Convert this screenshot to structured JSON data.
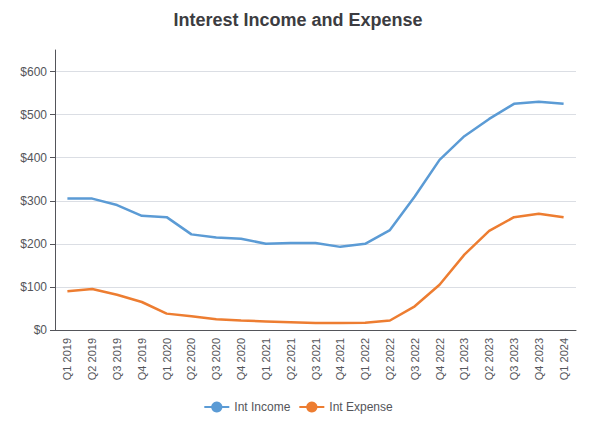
{
  "chart_data": {
    "type": "line",
    "title": "Interest Income and Expense",
    "categories": [
      "Q1 2019",
      "Q2 2019",
      "Q3 2019",
      "Q4 2019",
      "Q1 2020",
      "Q2 2020",
      "Q3 2020",
      "Q4 2020",
      "Q1 2021",
      "Q2 2021",
      "Q3 2021",
      "Q4 2021",
      "Q1 2022",
      "Q2 2022",
      "Q3 2022",
      "Q4 2022",
      "Q1 2023",
      "Q2 2023",
      "Q3 2023",
      "Q4 2023",
      "Q1 2024"
    ],
    "series": [
      {
        "name": "Int Income",
        "color": "#5B9BD5",
        "values": [
          305,
          305,
          290,
          265,
          262,
          222,
          215,
          212,
          200,
          202,
          202,
          193,
          200,
          232,
          310,
          395,
          450,
          490,
          525,
          530,
          525
        ]
      },
      {
        "name": "Int Expense",
        "color": "#ED7D31",
        "values": [
          90,
          95,
          82,
          65,
          38,
          32,
          25,
          22,
          20,
          18,
          16,
          16,
          17,
          22,
          55,
          105,
          175,
          230,
          262,
          270,
          262
        ]
      }
    ],
    "ylim": [
      0,
      650
    ],
    "yticks": [
      {
        "value": 0,
        "label": "$0"
      },
      {
        "value": 100,
        "label": "$100"
      },
      {
        "value": 200,
        "label": "$200"
      },
      {
        "value": 300,
        "label": "$300"
      },
      {
        "value": 400,
        "label": "$400"
      },
      {
        "value": 500,
        "label": "$500"
      },
      {
        "value": 600,
        "label": "$600"
      }
    ],
    "grid": true,
    "legend": "bottom"
  }
}
